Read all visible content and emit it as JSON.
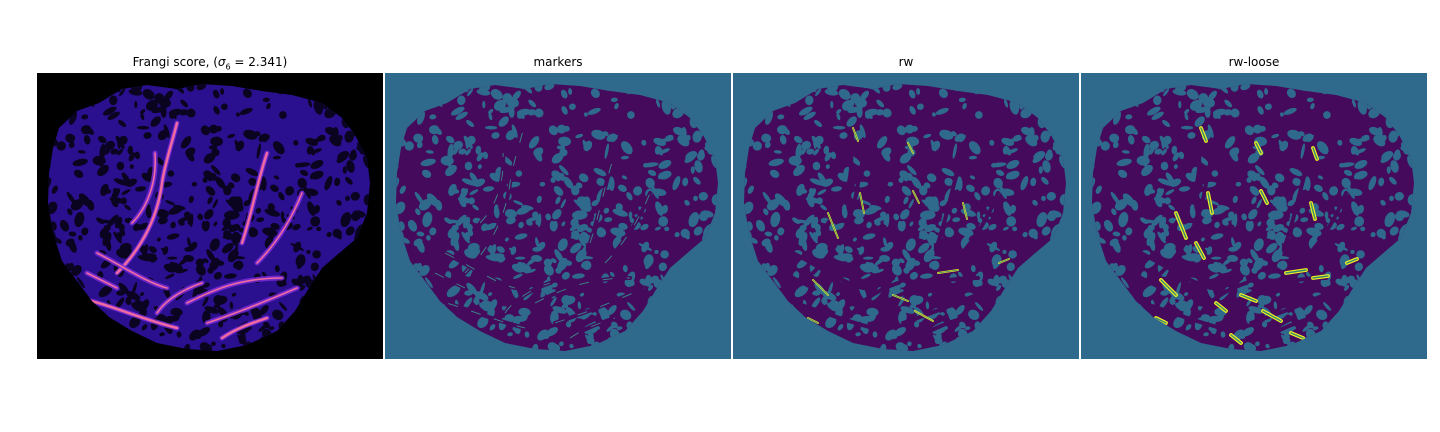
{
  "panels": [
    {
      "id": "frangi",
      "title_prefix": "Frangi score, (",
      "title_symbol": "σ",
      "title_subscript": "6",
      "title_suffix": " = 2.341)"
    },
    {
      "id": "markers",
      "title": "markers"
    },
    {
      "id": "rw",
      "title": "rw"
    },
    {
      "id": "rw-loose",
      "title": "rw-loose"
    }
  ],
  "colors": {
    "frangi_background": "#000000",
    "frangi_tissue": "#2a0f8f",
    "frangi_vessel_low": "#7a2bd6",
    "frangi_vessel_high": "#f06aa0",
    "label_background": "#2f6a8c",
    "label_tissue": "#450a5c",
    "label_highlight": "#f0f020"
  }
}
